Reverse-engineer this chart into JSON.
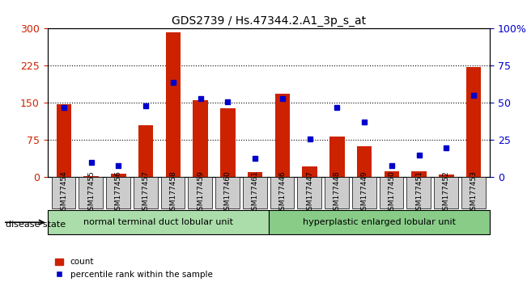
{
  "title": "GDS2739 / Hs.47344.2.A1_3p_s_at",
  "samples": [
    "GSM177454",
    "GSM177455",
    "GSM177456",
    "GSM177457",
    "GSM177458",
    "GSM177459",
    "GSM177460",
    "GSM177461",
    "GSM177446",
    "GSM177447",
    "GSM177448",
    "GSM177449",
    "GSM177450",
    "GSM177451",
    "GSM177452",
    "GSM177453"
  ],
  "counts": [
    148,
    3,
    8,
    105,
    292,
    155,
    140,
    10,
    168,
    22,
    83,
    62,
    13,
    13,
    5,
    222
  ],
  "percentiles": [
    47,
    10,
    8,
    48,
    64,
    53,
    51,
    13,
    53,
    26,
    47,
    37,
    8,
    15,
    20,
    55
  ],
  "group1_label": "normal terminal duct lobular unit",
  "group2_label": "hyperplastic enlarged lobular unit",
  "group1_count": 8,
  "group2_count": 8,
  "disease_state_label": "disease state",
  "ylabel_left": "",
  "ylabel_right": "",
  "ylim_left": [
    0,
    300
  ],
  "ylim_right": [
    0,
    100
  ],
  "yticks_left": [
    0,
    75,
    150,
    225,
    300
  ],
  "yticks_right": [
    0,
    25,
    50,
    75,
    100
  ],
  "bar_color": "#cc2200",
  "dot_color": "#0000cc",
  "group1_bg": "#aaddaa",
  "group2_bg": "#88cc88",
  "xticklabel_bg": "#cccccc",
  "legend_count_label": "count",
  "legend_pct_label": "percentile rank within the sample"
}
